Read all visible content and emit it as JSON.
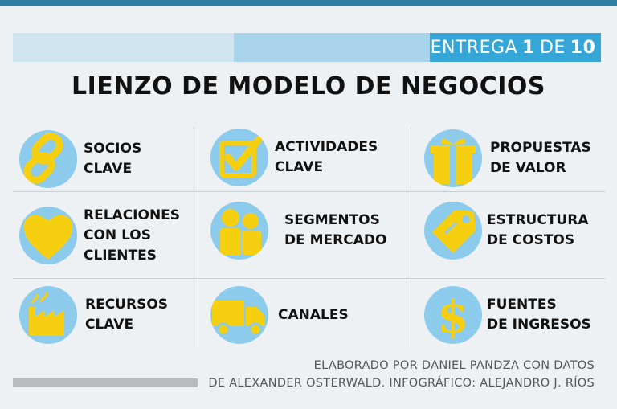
{
  "header": {
    "badge_prefix": "ENTREGA",
    "badge_current": "1",
    "badge_middle": "DE",
    "badge_total": "10",
    "title": "LIENZO DE MODELO DE NEGOCIOS"
  },
  "colors": {
    "icon_circle": "#8ccbec",
    "icon_yellow": "#f6cf10",
    "badge_bg": "#34a7d8",
    "top_bar": "#2f7fa3"
  },
  "blocks": [
    {
      "line1": "SOCIOS",
      "line2": "CLAVE",
      "line3": "",
      "icon": "link-icon"
    },
    {
      "line1": "ACTIVIDADES",
      "line2": "CLAVE",
      "line3": "",
      "icon": "checkbox-icon"
    },
    {
      "line1": "PROPUESTAS",
      "line2": "DE VALOR",
      "line3": "",
      "icon": "gift-icon"
    },
    {
      "line1": "RELACIONES",
      "line2": "CON LOS",
      "line3": "CLIENTES",
      "icon": "heart-icon"
    },
    {
      "line1": "SEGMENTOS",
      "line2": "DE MERCADO",
      "line3": "",
      "icon": "people-icon"
    },
    {
      "line1": "ESTRUCTURA",
      "line2": "DE COSTOS",
      "line3": "",
      "icon": "price-tag-icon"
    },
    {
      "line1": "RECURSOS",
      "line2": "CLAVE",
      "line3": "",
      "icon": "factory-icon"
    },
    {
      "line1": "CANALES",
      "line2": "",
      "line3": "",
      "icon": "truck-icon"
    },
    {
      "line1": "FUENTES",
      "line2": "DE INGRESOS",
      "line3": "",
      "icon": "dollar-icon"
    }
  ],
  "credits": {
    "line1": "ELABORADO POR DANIEL PANDZA CON DATOS",
    "line2": "DE ALEXANDER OSTERWALD. INFOGRÁFICO: ALEJANDRO J. RÍOS"
  }
}
